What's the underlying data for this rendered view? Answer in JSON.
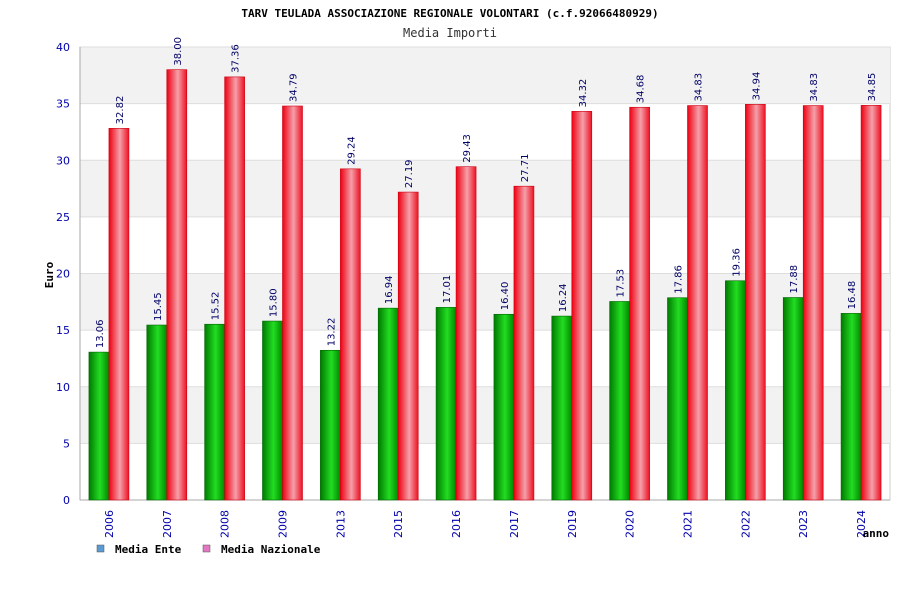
{
  "chart_data": {
    "type": "bar",
    "title": "TARV TEULADA ASSOCIAZIONE REGIONALE VOLONTARI (c.f.92066480929)",
    "subtitle": "Media Importi",
    "xlabel": "anno",
    "ylabel": "Euro",
    "ylim": [
      0,
      40
    ],
    "yticks": [
      0,
      5,
      10,
      15,
      20,
      25,
      30,
      35,
      40
    ],
    "grid": true,
    "legend_position": "bottom-left",
    "categories": [
      "2006",
      "2007",
      "2008",
      "2009",
      "2013",
      "2015",
      "2016",
      "2017",
      "2019",
      "2020",
      "2021",
      "2022",
      "2023",
      "2024"
    ],
    "series": [
      {
        "name": "Media Ente",
        "color": "#00aa00",
        "legend_color": "#5b9bd5",
        "values": [
          13.06,
          15.45,
          15.52,
          15.8,
          13.22,
          16.94,
          17.01,
          16.4,
          16.24,
          17.53,
          17.86,
          19.36,
          17.88,
          16.48
        ],
        "labels": [
          "13.06",
          "15.45",
          "15.52",
          "15.80",
          "13.22",
          "16.94",
          "17.01",
          "16.40",
          "16.24",
          "17.53",
          "17.86",
          "19.36",
          "17.88",
          "16.48"
        ]
      },
      {
        "name": "Media Nazionale",
        "color": "#ee1122",
        "legend_color": "#e377c2",
        "values": [
          32.82,
          38.0,
          37.36,
          34.79,
          29.24,
          27.19,
          29.43,
          27.71,
          34.32,
          34.68,
          34.83,
          34.94,
          34.83,
          34.85
        ],
        "labels": [
          "32.82",
          "38.00",
          "37.36",
          "34.79",
          "29.24",
          "27.19",
          "29.43",
          "27.71",
          "34.32",
          "34.68",
          "34.83",
          "34.94",
          "34.83",
          "34.85"
        ]
      }
    ]
  }
}
